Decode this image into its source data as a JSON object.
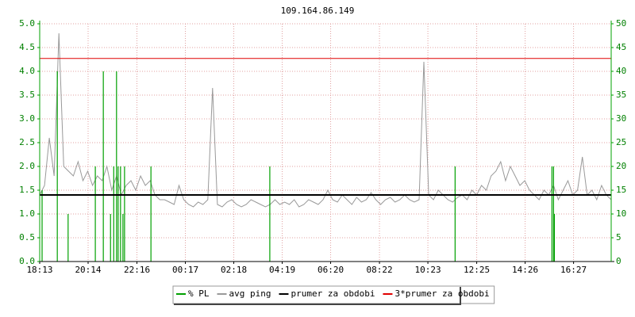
{
  "chart_data": {
    "type": "line",
    "title": "109.164.86.149",
    "grid": true,
    "xlim": [
      0,
      1428
    ],
    "xticks": [
      {
        "value": 0,
        "label": "18:13"
      },
      {
        "value": 121,
        "label": "20:14"
      },
      {
        "value": 243,
        "label": "22:16"
      },
      {
        "value": 364,
        "label": "00:17"
      },
      {
        "value": 485,
        "label": "02:18"
      },
      {
        "value": 606,
        "label": "04:19"
      },
      {
        "value": 727,
        "label": "06:20"
      },
      {
        "value": 849,
        "label": "08:22"
      },
      {
        "value": 970,
        "label": "10:23"
      },
      {
        "value": 1092,
        "label": "12:25"
      },
      {
        "value": 1213,
        "label": "14:26"
      },
      {
        "value": 1334,
        "label": "16:27"
      }
    ],
    "ylim": [
      0,
      5
    ],
    "yticks": [
      {
        "value": 0,
        "label": "0.0"
      },
      {
        "value": 0.5,
        "label": "0.5"
      },
      {
        "value": 1,
        "label": "1.0"
      },
      {
        "value": 1.5,
        "label": "1.5"
      },
      {
        "value": 2,
        "label": "2.0"
      },
      {
        "value": 2.5,
        "label": "2.5"
      },
      {
        "value": 3,
        "label": "3.0"
      },
      {
        "value": 3.5,
        "label": "3.5"
      },
      {
        "value": 4,
        "label": "4.0"
      },
      {
        "value": 4.5,
        "label": "4.5"
      },
      {
        "value": 5,
        "label": "5.0"
      }
    ],
    "y2lim": [
      0,
      50
    ],
    "y2ticks": [
      0,
      5,
      10,
      15,
      20,
      25,
      30,
      35,
      40,
      45,
      50
    ],
    "series": [
      {
        "name": "% PL",
        "color": "#00a000",
        "kind": "impulse",
        "axis": "y2",
        "x": [
          6,
          44,
          71,
          139,
          159,
          177,
          185,
          192,
          196,
          202,
          208,
          212,
          278,
          575,
          1038,
          1280,
          1284,
          1286
        ],
        "values": [
          15,
          40,
          10,
          20,
          40,
          10,
          20,
          40,
          20,
          20,
          10,
          20,
          20,
          20,
          20,
          20,
          20,
          10
        ]
      },
      {
        "name": "avg ping",
        "color": "#999999",
        "kind": "line",
        "x": [
          0,
          12,
          24,
          36,
          48,
          60,
          72,
          84,
          96,
          108,
          120,
          132,
          144,
          156,
          168,
          180,
          192,
          204,
          216,
          228,
          240,
          252,
          264,
          276,
          288,
          300,
          312,
          324,
          336,
          348,
          360,
          372,
          384,
          396,
          408,
          420,
          432,
          444,
          456,
          468,
          480,
          492,
          504,
          516,
          528,
          540,
          552,
          564,
          576,
          588,
          600,
          612,
          624,
          636,
          648,
          660,
          672,
          684,
          696,
          708,
          720,
          732,
          744,
          756,
          768,
          780,
          792,
          804,
          816,
          828,
          840,
          852,
          864,
          876,
          888,
          900,
          912,
          924,
          936,
          948,
          960,
          972,
          984,
          996,
          1008,
          1020,
          1032,
          1044,
          1056,
          1068,
          1080,
          1092,
          1104,
          1116,
          1128,
          1140,
          1152,
          1164,
          1176,
          1188,
          1200,
          1212,
          1224,
          1236,
          1248,
          1260,
          1272,
          1284,
          1296,
          1308,
          1320,
          1332,
          1344,
          1356,
          1368,
          1380,
          1392,
          1404,
          1416,
          1428
        ],
        "values": [
          1.4,
          1.6,
          2.6,
          1.8,
          4.8,
          2.0,
          1.9,
          1.8,
          2.1,
          1.7,
          1.9,
          1.6,
          1.8,
          1.7,
          2.0,
          1.5,
          1.8,
          1.4,
          1.6,
          1.7,
          1.5,
          1.8,
          1.6,
          1.7,
          1.4,
          1.3,
          1.3,
          1.25,
          1.2,
          1.6,
          1.3,
          1.2,
          1.15,
          1.25,
          1.2,
          1.3,
          3.65,
          1.2,
          1.15,
          1.25,
          1.3,
          1.2,
          1.15,
          1.2,
          1.3,
          1.25,
          1.2,
          1.15,
          1.2,
          1.3,
          1.2,
          1.25,
          1.2,
          1.3,
          1.15,
          1.2,
          1.3,
          1.25,
          1.2,
          1.3,
          1.5,
          1.3,
          1.25,
          1.4,
          1.3,
          1.2,
          1.35,
          1.25,
          1.3,
          1.45,
          1.3,
          1.2,
          1.3,
          1.35,
          1.25,
          1.3,
          1.4,
          1.3,
          1.25,
          1.3,
          4.2,
          1.4,
          1.3,
          1.5,
          1.4,
          1.3,
          1.25,
          1.35,
          1.4,
          1.3,
          1.5,
          1.4,
          1.6,
          1.5,
          1.8,
          1.9,
          2.1,
          1.7,
          2.0,
          1.8,
          1.6,
          1.7,
          1.5,
          1.4,
          1.3,
          1.5,
          1.4,
          1.6,
          1.3,
          1.5,
          1.7,
          1.4,
          1.5,
          2.2,
          1.4,
          1.5,
          1.3,
          1.6,
          1.4,
          1.3
        ]
      },
      {
        "name": "prumer za obdobi",
        "color": "#000000",
        "kind": "hline",
        "values": [
          1.4
        ]
      },
      {
        "name": "3*prumer za obdobi",
        "color": "#e00000",
        "kind": "hline",
        "values": [
          4.27
        ]
      }
    ]
  }
}
